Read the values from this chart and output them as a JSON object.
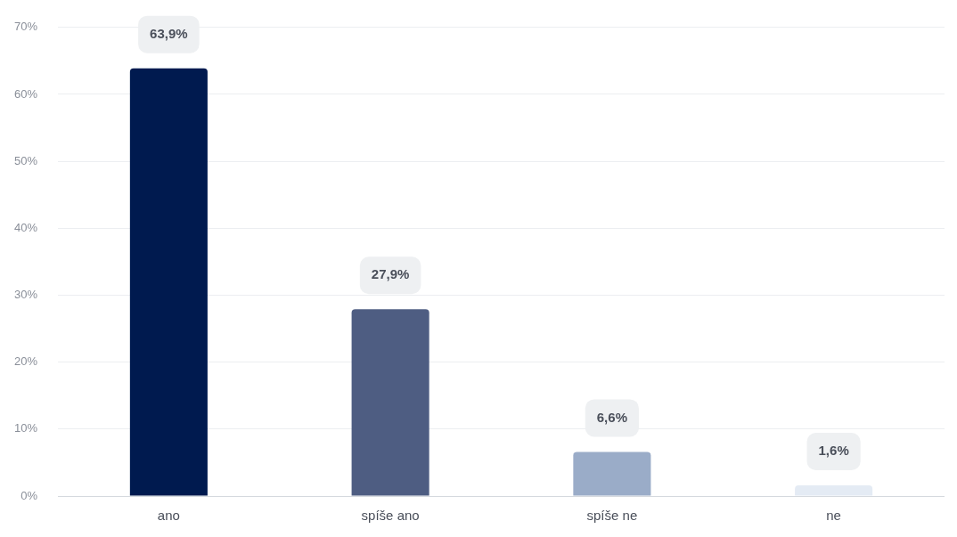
{
  "chart_data": {
    "type": "bar",
    "categories": [
      "ano",
      "spíše ano",
      "spíše ne",
      "ne"
    ],
    "values": [
      63.9,
      27.9,
      6.6,
      1.6
    ],
    "colors": [
      "#001a4f",
      "#4e5d82",
      "#9aacc8",
      "#e4ebf4"
    ],
    "value_labels": [
      "63,9%",
      "27,9%",
      "6,6%",
      "1,6%"
    ],
    "ylim": [
      0,
      70
    ],
    "yticks": [
      {
        "value": 0,
        "label": "0%"
      },
      {
        "value": 10,
        "label": "10%"
      },
      {
        "value": 20,
        "label": "20%"
      },
      {
        "value": 30,
        "label": "30%"
      },
      {
        "value": 40,
        "label": "40%"
      },
      {
        "value": 50,
        "label": "50%"
      },
      {
        "value": 60,
        "label": "60%"
      },
      {
        "value": 70,
        "label": "70%"
      }
    ],
    "grid": "y",
    "legend": false
  }
}
